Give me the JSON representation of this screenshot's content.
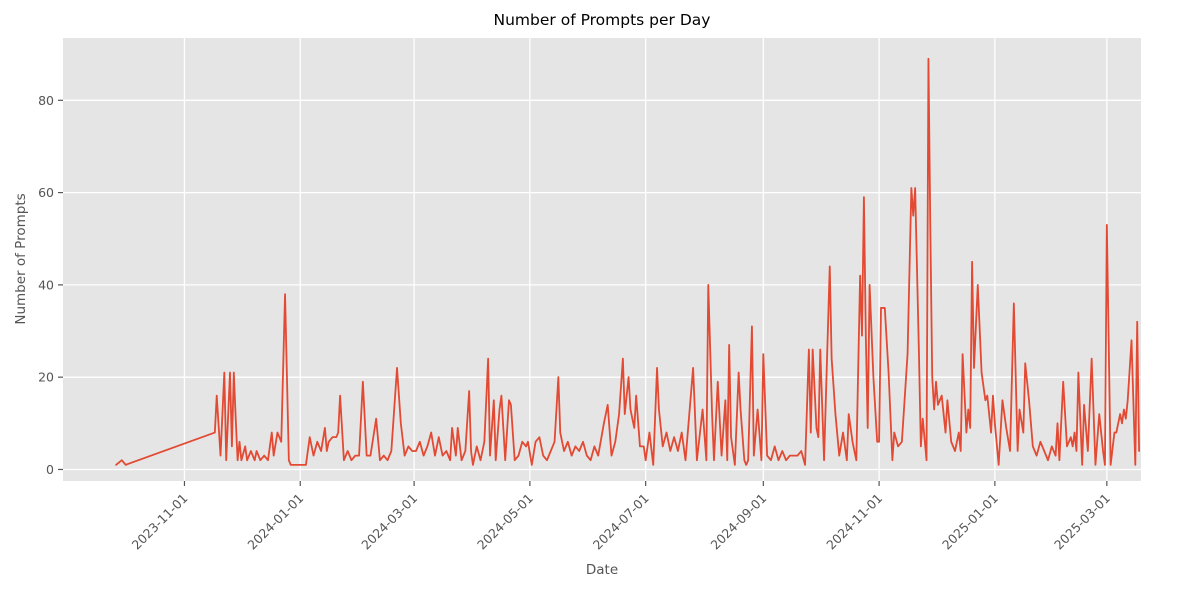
{
  "chart_data": {
    "type": "line",
    "title": "Number of Prompts per Day",
    "xlabel": "Date",
    "ylabel": "Number of Prompts",
    "legend": "none",
    "grid": "on",
    "line_color": "#E24A33",
    "plot_bg_color": "#E5E5E5",
    "grid_color": "#FFFFFF",
    "tick_label_color": "#555555",
    "title_color": "#000000",
    "y_ticks": [
      0,
      20,
      40,
      60,
      80
    ],
    "ylim": [
      -2.5,
      93.5
    ],
    "x_ticks": [
      "2023-11-01",
      "2024-01-01",
      "2024-03-01",
      "2024-05-01",
      "2024-07-01",
      "2024-09-01",
      "2024-11-01",
      "2025-01-01",
      "2025-03-01"
    ],
    "x_tick_rotation": 45,
    "xlim": [
      "2023-08-29",
      "2025-03-19"
    ],
    "points": [
      [
        "2023-09-26",
        1
      ],
      [
        "2023-09-29",
        2
      ],
      [
        "2023-10-01",
        1
      ],
      [
        "2023-11-17",
        8
      ],
      [
        "2023-11-18",
        16
      ],
      [
        "2023-11-20",
        3
      ],
      [
        "2023-11-22",
        21
      ],
      [
        "2023-11-23",
        2
      ],
      [
        "2023-11-25",
        21
      ],
      [
        "2023-11-26",
        5
      ],
      [
        "2023-11-27",
        21
      ],
      [
        "2023-11-28",
        11
      ],
      [
        "2023-11-29",
        2
      ],
      [
        "2023-11-30",
        6
      ],
      [
        "2023-12-01",
        2
      ],
      [
        "2023-12-03",
        5
      ],
      [
        "2023-12-04",
        2
      ],
      [
        "2023-12-06",
        4
      ],
      [
        "2023-12-08",
        2
      ],
      [
        "2023-12-09",
        4
      ],
      [
        "2023-12-11",
        2
      ],
      [
        "2023-12-13",
        3
      ],
      [
        "2023-12-15",
        2
      ],
      [
        "2023-12-17",
        8
      ],
      [
        "2023-12-18",
        3
      ],
      [
        "2023-12-20",
        8
      ],
      [
        "2023-12-22",
        6
      ],
      [
        "2023-12-24",
        38
      ],
      [
        "2023-12-26",
        2
      ],
      [
        "2023-12-27",
        1
      ],
      [
        "2023-12-29",
        1
      ],
      [
        "2023-12-31",
        1
      ],
      [
        "2024-01-02",
        1
      ],
      [
        "2024-01-04",
        1
      ],
      [
        "2024-01-06",
        7
      ],
      [
        "2024-01-08",
        3
      ],
      [
        "2024-01-10",
        6
      ],
      [
        "2024-01-12",
        4
      ],
      [
        "2024-01-14",
        9
      ],
      [
        "2024-01-15",
        4
      ],
      [
        "2024-01-16",
        6
      ],
      [
        "2024-01-18",
        7
      ],
      [
        "2024-01-20",
        7
      ],
      [
        "2024-01-21",
        8
      ],
      [
        "2024-01-22",
        16
      ],
      [
        "2024-01-24",
        2
      ],
      [
        "2024-01-26",
        4
      ],
      [
        "2024-01-28",
        2
      ],
      [
        "2024-01-30",
        3
      ],
      [
        "2024-02-01",
        3
      ],
      [
        "2024-02-03",
        19
      ],
      [
        "2024-02-05",
        3
      ],
      [
        "2024-02-07",
        3
      ],
      [
        "2024-02-10",
        11
      ],
      [
        "2024-02-12",
        2
      ],
      [
        "2024-02-14",
        3
      ],
      [
        "2024-02-16",
        2
      ],
      [
        "2024-02-18",
        4
      ],
      [
        "2024-02-21",
        22
      ],
      [
        "2024-02-23",
        10
      ],
      [
        "2024-02-25",
        3
      ],
      [
        "2024-02-27",
        5
      ],
      [
        "2024-02-29",
        4
      ],
      [
        "2024-03-02",
        4
      ],
      [
        "2024-03-04",
        6
      ],
      [
        "2024-03-06",
        3
      ],
      [
        "2024-03-08",
        5
      ],
      [
        "2024-03-10",
        8
      ],
      [
        "2024-03-12",
        3
      ],
      [
        "2024-03-14",
        7
      ],
      [
        "2024-03-16",
        3
      ],
      [
        "2024-03-18",
        4
      ],
      [
        "2024-03-20",
        2
      ],
      [
        "2024-03-21",
        9
      ],
      [
        "2024-03-23",
        3
      ],
      [
        "2024-03-24",
        9
      ],
      [
        "2024-03-26",
        2
      ],
      [
        "2024-03-28",
        4
      ],
      [
        "2024-03-30",
        17
      ],
      [
        "2024-03-31",
        4
      ],
      [
        "2024-04-01",
        1
      ],
      [
        "2024-04-03",
        5
      ],
      [
        "2024-04-05",
        2
      ],
      [
        "2024-04-07",
        6
      ],
      [
        "2024-04-09",
        24
      ],
      [
        "2024-04-10",
        3
      ],
      [
        "2024-04-12",
        15
      ],
      [
        "2024-04-13",
        2
      ],
      [
        "2024-04-15",
        13
      ],
      [
        "2024-04-16",
        16
      ],
      [
        "2024-04-18",
        2
      ],
      [
        "2024-04-20",
        15
      ],
      [
        "2024-04-21",
        14
      ],
      [
        "2024-04-23",
        2
      ],
      [
        "2024-04-25",
        3
      ],
      [
        "2024-04-27",
        6
      ],
      [
        "2024-04-29",
        5
      ],
      [
        "2024-04-30",
        6
      ],
      [
        "2024-05-02",
        1
      ],
      [
        "2024-05-04",
        6
      ],
      [
        "2024-05-06",
        7
      ],
      [
        "2024-05-08",
        3
      ],
      [
        "2024-05-10",
        2
      ],
      [
        "2024-05-12",
        4
      ],
      [
        "2024-05-14",
        6
      ],
      [
        "2024-05-16",
        20
      ],
      [
        "2024-05-17",
        8
      ],
      [
        "2024-05-19",
        4
      ],
      [
        "2024-05-21",
        6
      ],
      [
        "2024-05-23",
        3
      ],
      [
        "2024-05-25",
        5
      ],
      [
        "2024-05-27",
        4
      ],
      [
        "2024-05-29",
        6
      ],
      [
        "2024-05-31",
        3
      ],
      [
        "2024-06-02",
        2
      ],
      [
        "2024-06-04",
        5
      ],
      [
        "2024-06-06",
        3
      ],
      [
        "2024-06-09",
        10
      ],
      [
        "2024-06-11",
        14
      ],
      [
        "2024-06-13",
        3
      ],
      [
        "2024-06-15",
        6
      ],
      [
        "2024-06-17",
        12
      ],
      [
        "2024-06-19",
        24
      ],
      [
        "2024-06-20",
        12
      ],
      [
        "2024-06-22",
        20
      ],
      [
        "2024-06-23",
        13
      ],
      [
        "2024-06-25",
        9
      ],
      [
        "2024-06-26",
        16
      ],
      [
        "2024-06-28",
        5
      ],
      [
        "2024-06-30",
        5
      ],
      [
        "2024-07-01",
        2
      ],
      [
        "2024-07-03",
        8
      ],
      [
        "2024-07-05",
        1
      ],
      [
        "2024-07-07",
        22
      ],
      [
        "2024-07-08",
        13
      ],
      [
        "2024-07-10",
        5
      ],
      [
        "2024-07-12",
        8
      ],
      [
        "2024-07-14",
        4
      ],
      [
        "2024-07-16",
        7
      ],
      [
        "2024-07-18",
        4
      ],
      [
        "2024-07-20",
        8
      ],
      [
        "2024-07-22",
        2
      ],
      [
        "2024-07-24",
        12
      ],
      [
        "2024-07-26",
        22
      ],
      [
        "2024-07-28",
        2
      ],
      [
        "2024-07-31",
        13
      ],
      [
        "2024-08-02",
        2
      ],
      [
        "2024-08-03",
        40
      ],
      [
        "2024-08-05",
        12
      ],
      [
        "2024-08-06",
        2
      ],
      [
        "2024-08-08",
        19
      ],
      [
        "2024-08-10",
        3
      ],
      [
        "2024-08-12",
        15
      ],
      [
        "2024-08-13",
        2
      ],
      [
        "2024-08-14",
        27
      ],
      [
        "2024-08-15",
        7
      ],
      [
        "2024-08-17",
        1
      ],
      [
        "2024-08-19",
        21
      ],
      [
        "2024-08-20",
        13
      ],
      [
        "2024-08-22",
        2
      ],
      [
        "2024-08-23",
        1
      ],
      [
        "2024-08-24",
        2
      ],
      [
        "2024-08-26",
        31
      ],
      [
        "2024-08-27",
        3
      ],
      [
        "2024-08-29",
        13
      ],
      [
        "2024-08-31",
        2
      ],
      [
        "2024-09-01",
        25
      ],
      [
        "2024-09-03",
        3
      ],
      [
        "2024-09-05",
        2
      ],
      [
        "2024-09-07",
        5
      ],
      [
        "2024-09-09",
        2
      ],
      [
        "2024-09-11",
        4
      ],
      [
        "2024-09-13",
        2
      ],
      [
        "2024-09-15",
        3
      ],
      [
        "2024-09-17",
        3
      ],
      [
        "2024-09-19",
        3
      ],
      [
        "2024-09-21",
        4
      ],
      [
        "2024-09-23",
        1
      ],
      [
        "2024-09-25",
        26
      ],
      [
        "2024-09-26",
        8
      ],
      [
        "2024-09-27",
        26
      ],
      [
        "2024-09-29",
        9
      ],
      [
        "2024-09-30",
        7
      ],
      [
        "2024-10-01",
        26
      ],
      [
        "2024-10-03",
        2
      ],
      [
        "2024-10-06",
        44
      ],
      [
        "2024-10-07",
        24
      ],
      [
        "2024-10-09",
        12
      ],
      [
        "2024-10-11",
        3
      ],
      [
        "2024-10-13",
        8
      ],
      [
        "2024-10-15",
        2
      ],
      [
        "2024-10-16",
        12
      ],
      [
        "2024-10-18",
        6
      ],
      [
        "2024-10-20",
        2
      ],
      [
        "2024-10-22",
        42
      ],
      [
        "2024-10-23",
        29
      ],
      [
        "2024-10-24",
        59
      ],
      [
        "2024-10-25",
        29
      ],
      [
        "2024-10-26",
        9
      ],
      [
        "2024-10-27",
        40
      ],
      [
        "2024-10-29",
        20
      ],
      [
        "2024-10-31",
        6
      ],
      [
        "2024-11-01",
        6
      ],
      [
        "2024-11-02",
        35
      ],
      [
        "2024-11-04",
        35
      ],
      [
        "2024-11-06",
        21
      ],
      [
        "2024-11-08",
        2
      ],
      [
        "2024-11-09",
        8
      ],
      [
        "2024-11-11",
        5
      ],
      [
        "2024-11-13",
        6
      ],
      [
        "2024-11-16",
        25
      ],
      [
        "2024-11-18",
        61
      ],
      [
        "2024-11-19",
        55
      ],
      [
        "2024-11-20",
        61
      ],
      [
        "2024-11-22",
        25
      ],
      [
        "2024-11-23",
        5
      ],
      [
        "2024-11-24",
        11
      ],
      [
        "2024-11-26",
        2
      ],
      [
        "2024-11-27",
        89
      ],
      [
        "2024-11-28",
        52
      ],
      [
        "2024-11-29",
        20
      ],
      [
        "2024-11-30",
        13
      ],
      [
        "2024-12-01",
        19
      ],
      [
        "2024-12-02",
        14
      ],
      [
        "2024-12-04",
        16
      ],
      [
        "2024-12-06",
        8
      ],
      [
        "2024-12-07",
        15
      ],
      [
        "2024-12-09",
        6
      ],
      [
        "2024-12-11",
        4
      ],
      [
        "2024-12-13",
        8
      ],
      [
        "2024-12-14",
        4
      ],
      [
        "2024-12-15",
        25
      ],
      [
        "2024-12-17",
        8
      ],
      [
        "2024-12-18",
        13
      ],
      [
        "2024-12-19",
        9
      ],
      [
        "2024-12-20",
        45
      ],
      [
        "2024-12-21",
        22
      ],
      [
        "2024-12-23",
        40
      ],
      [
        "2024-12-25",
        21
      ],
      [
        "2024-12-27",
        15
      ],
      [
        "2024-12-28",
        16
      ],
      [
        "2024-12-30",
        8
      ],
      [
        "2024-12-31",
        16
      ],
      [
        "2025-01-01",
        10
      ],
      [
        "2025-01-03",
        1
      ],
      [
        "2025-01-05",
        15
      ],
      [
        "2025-01-07",
        9
      ],
      [
        "2025-01-09",
        4
      ],
      [
        "2025-01-11",
        36
      ],
      [
        "2025-01-13",
        4
      ],
      [
        "2025-01-14",
        13
      ],
      [
        "2025-01-16",
        8
      ],
      [
        "2025-01-17",
        23
      ],
      [
        "2025-01-19",
        15
      ],
      [
        "2025-01-21",
        5
      ],
      [
        "2025-01-23",
        3
      ],
      [
        "2025-01-25",
        6
      ],
      [
        "2025-01-27",
        4
      ],
      [
        "2025-01-29",
        2
      ],
      [
        "2025-01-31",
        5
      ],
      [
        "2025-02-02",
        3
      ],
      [
        "2025-02-03",
        10
      ],
      [
        "2025-02-04",
        2
      ],
      [
        "2025-02-06",
        19
      ],
      [
        "2025-02-08",
        5
      ],
      [
        "2025-02-10",
        7
      ],
      [
        "2025-02-11",
        5
      ],
      [
        "2025-02-12",
        8
      ],
      [
        "2025-02-13",
        4
      ],
      [
        "2025-02-14",
        21
      ],
      [
        "2025-02-16",
        1
      ],
      [
        "2025-02-17",
        14
      ],
      [
        "2025-02-19",
        4
      ],
      [
        "2025-02-21",
        24
      ],
      [
        "2025-02-23",
        1
      ],
      [
        "2025-02-25",
        12
      ],
      [
        "2025-02-27",
        4
      ],
      [
        "2025-02-28",
        1
      ],
      [
        "2025-03-01",
        53
      ],
      [
        "2025-03-03",
        1
      ],
      [
        "2025-03-05",
        8
      ],
      [
        "2025-03-06",
        8
      ],
      [
        "2025-03-08",
        12
      ],
      [
        "2025-03-09",
        10
      ],
      [
        "2025-03-10",
        13
      ],
      [
        "2025-03-11",
        11
      ],
      [
        "2025-03-12",
        15
      ],
      [
        "2025-03-14",
        28
      ],
      [
        "2025-03-16",
        1
      ],
      [
        "2025-03-17",
        32
      ],
      [
        "2025-03-18",
        4
      ]
    ]
  }
}
